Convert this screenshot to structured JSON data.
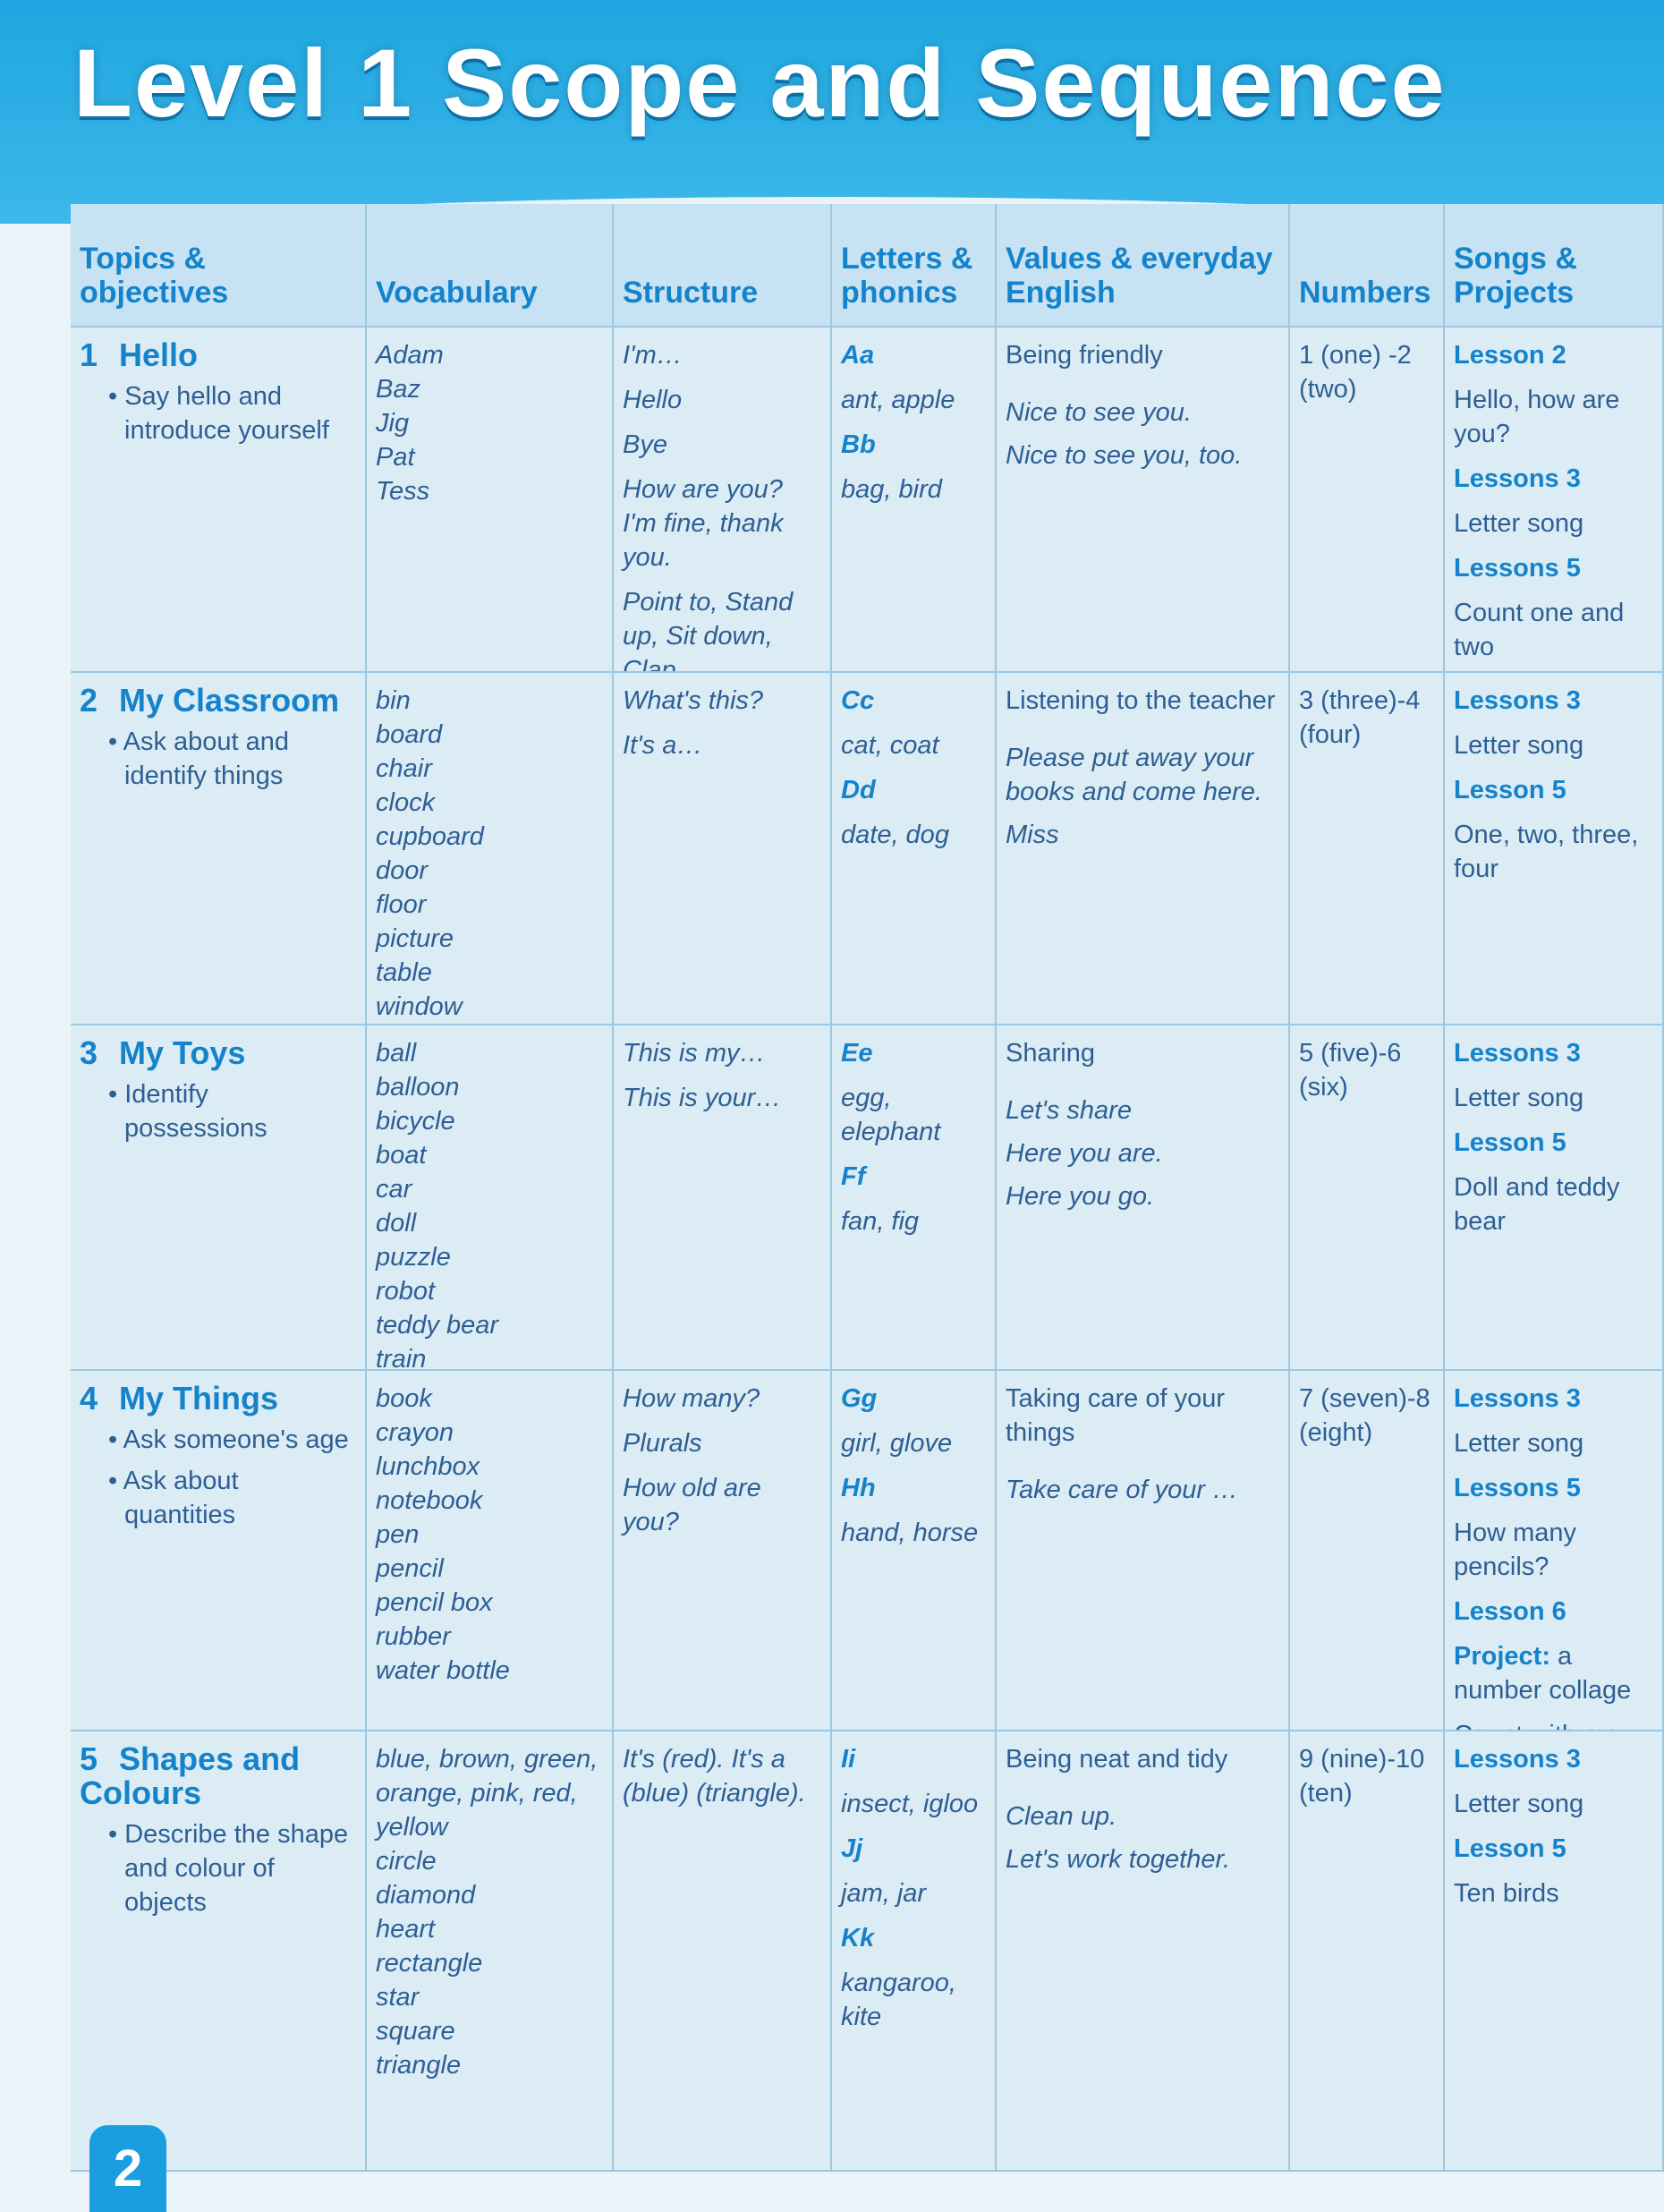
{
  "title": "Level 1 Scope and Sequence",
  "page_number": "2",
  "headers": [
    "Topics & objectives",
    "Vocabulary",
    "Structure",
    "Letters & phonics",
    "Values & everyday English",
    "Numbers",
    "Songs & Projects"
  ],
  "rows": [
    {
      "num": "1",
      "title": "Hello",
      "objectives": [
        "Say hello and introduce yourself"
      ],
      "vocabulary": [
        "Adam",
        "Baz",
        "Jig",
        "Pat",
        "Tess"
      ],
      "structure": [
        "I'm…",
        "Hello",
        "Bye",
        "How are you? I'm fine, thank you.",
        "Point to, Stand up, Sit down, Clap"
      ],
      "phonics": [
        {
          "letters": "Aa",
          "words": "ant, apple"
        },
        {
          "letters": "Bb",
          "words": "bag, bird"
        }
      ],
      "values": {
        "heading": "Being friendly",
        "phrases": [
          "Nice to see you.",
          "Nice to see you, too."
        ]
      },
      "numbers": "1 (one) -2 (two)",
      "songs": [
        {
          "lesson": "Lesson 2",
          "items": [
            "Hello, how are you?"
          ]
        },
        {
          "lesson": "Lessons 3",
          "items": [
            "Letter song"
          ]
        },
        {
          "lesson": "Lessons 5",
          "items": [
            "Count one and two"
          ]
        }
      ]
    },
    {
      "num": "2",
      "title": "My Classroom",
      "objectives": [
        "Ask about and identify things"
      ],
      "vocabulary": [
        "bin",
        "board",
        "chair",
        "clock",
        "cupboard",
        "door",
        "floor",
        "picture",
        "table",
        "window"
      ],
      "structure": [
        "What's this?",
        "It's a…"
      ],
      "phonics": [
        {
          "letters": "Cc",
          "words": "cat, coat"
        },
        {
          "letters": "Dd",
          "words": "date, dog"
        }
      ],
      "values": {
        "heading": "Listening to the teacher",
        "phrases": [
          "Please put away your books and come here.",
          "Miss"
        ]
      },
      "numbers": "3 (three)-4 (four)",
      "songs": [
        {
          "lesson": "Lessons 3",
          "items": [
            "Letter song"
          ]
        },
        {
          "lesson": "Lesson 5",
          "items": [
            "One, two, three, four"
          ]
        }
      ]
    },
    {
      "num": "3",
      "title": "My Toys",
      "objectives": [
        "Identify possessions"
      ],
      "vocabulary": [
        "ball",
        "balloon",
        "bicycle",
        "boat",
        "car",
        "doll",
        "puzzle",
        "robot",
        "teddy bear",
        "train"
      ],
      "structure": [
        "This is my…",
        "This is your…"
      ],
      "phonics": [
        {
          "letters": "Ee",
          "words": "egg, elephant"
        },
        {
          "letters": "Ff",
          "words": "fan, fig"
        }
      ],
      "values": {
        "heading": "Sharing",
        "phrases": [
          "Let's share",
          "Here you are.",
          "Here you go."
        ]
      },
      "numbers": "5 (five)-6 (six)",
      "songs": [
        {
          "lesson": "Lessons 3",
          "items": [
            "Letter song"
          ]
        },
        {
          "lesson": "Lesson 5",
          "items": [
            "Doll and teddy bear"
          ]
        }
      ]
    },
    {
      "num": "4",
      "title": "My Things",
      "objectives": [
        "Ask someone's age",
        "Ask about quantities"
      ],
      "vocabulary": [
        "book",
        "crayon",
        "lunchbox",
        "notebook",
        "pen",
        "pencil",
        "pencil box",
        "rubber",
        "water bottle"
      ],
      "structure": [
        "How many?",
        "Plurals",
        "How old are you?"
      ],
      "phonics": [
        {
          "letters": "Gg",
          "words": "girl, glove"
        },
        {
          "letters": "Hh",
          "words": "hand, horse"
        }
      ],
      "values": {
        "heading": "Taking care of your things",
        "phrases": [
          "Take care of your …"
        ]
      },
      "numbers": "7 (seven)-8 (eight)",
      "songs": [
        {
          "lesson": "Lessons 3",
          "items": [
            "Letter song"
          ]
        },
        {
          "lesson": "Lessons 5",
          "items": [
            "How many pencils?"
          ]
        },
        {
          "lesson": "Lesson 6",
          "project_label": "Project:",
          "items": [
            "a number collage",
            "Count with me"
          ]
        }
      ]
    },
    {
      "num": "5",
      "title": "Shapes and Colours",
      "objectives": [
        "Describe the shape and colour of objects"
      ],
      "vocabulary": [
        "blue, brown, green, orange, pink, red, yellow",
        "circle",
        "diamond",
        "heart",
        "rectangle",
        "star",
        "square",
        "triangle"
      ],
      "structure": [
        "It's (red). It's a (blue) (triangle)."
      ],
      "phonics": [
        {
          "letters": "Ii",
          "words": "insect, igloo"
        },
        {
          "letters": "Jj",
          "words": "jam, jar"
        },
        {
          "letters": "Kk",
          "words": "kangaroo, kite"
        }
      ],
      "values": {
        "heading": "Being neat and tidy",
        "phrases": [
          "Clean up.",
          "Let's work together."
        ]
      },
      "numbers": "9 (nine)-10 (ten)",
      "songs": [
        {
          "lesson": "Lessons 3",
          "items": [
            "Letter song"
          ]
        },
        {
          "lesson": "Lesson 5",
          "items": [
            "Ten birds"
          ]
        }
      ]
    }
  ]
}
